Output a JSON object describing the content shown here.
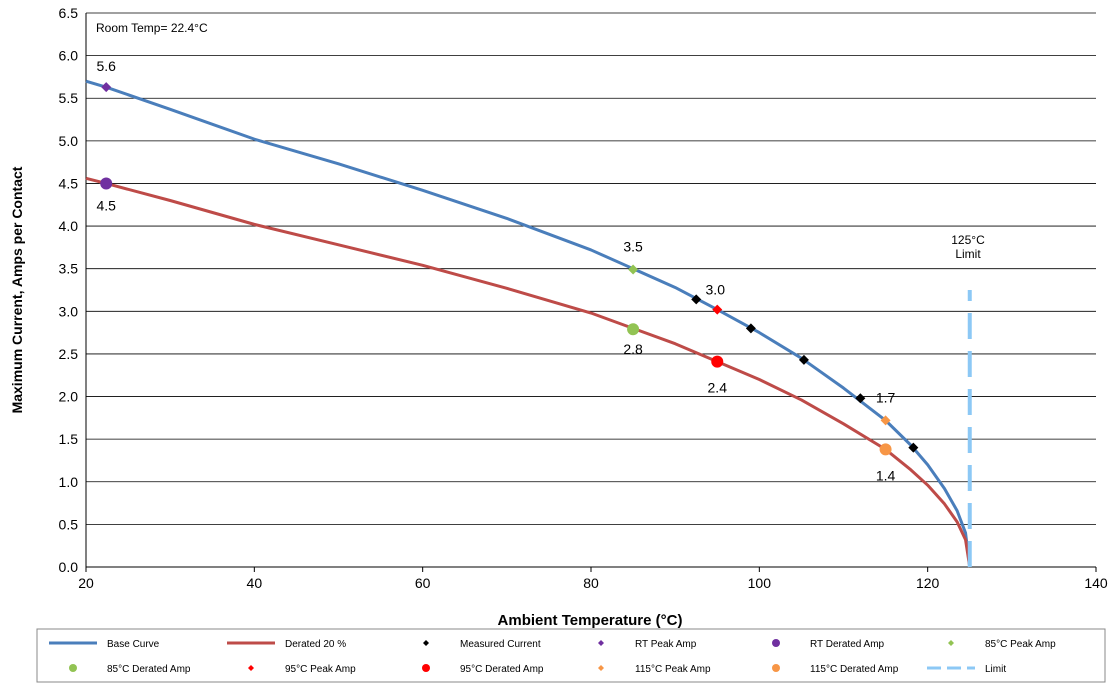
{
  "chart_data": {
    "type": "line",
    "title": "",
    "xlabel": "Ambient Temperature (°C)",
    "ylabel": "Maximum Current, Amps per Contact",
    "xlim": [
      20,
      140
    ],
    "ylim": [
      0,
      6.5
    ],
    "x_ticks": [
      20,
      40,
      60,
      80,
      100,
      120,
      140
    ],
    "y_ticks": [
      "0.0",
      "0.5",
      "1.0",
      "1.5",
      "2.0",
      "2.5",
      "3.0",
      "3.5",
      "4.0",
      "4.5",
      "5.0",
      "5.5",
      "6.0",
      "6.5"
    ],
    "grid": "horizontal",
    "legend_position": "bottom",
    "annotations": [
      {
        "text": "Room Temp= 22.4°C",
        "x": 21,
        "y": 6.35
      },
      {
        "text": "125°C",
        "x": 125,
        "y": 3.85
      },
      {
        "text": "Limit",
        "x": 125,
        "y": 3.72
      }
    ],
    "series": [
      {
        "name": "Base Curve",
        "kind": "line",
        "color": "#4a7ebb",
        "x": [
          20,
          22.4,
          30,
          40,
          50,
          60,
          70,
          80,
          85,
          90,
          95,
          100,
          105,
          110,
          115,
          118,
          120,
          122,
          123.5,
          124.5,
          125
        ],
        "y": [
          5.7,
          5.63,
          5.37,
          5.02,
          4.73,
          4.42,
          4.09,
          3.72,
          3.5,
          3.28,
          3.02,
          2.75,
          2.45,
          2.1,
          1.72,
          1.43,
          1.2,
          0.92,
          0.66,
          0.4,
          0.0
        ]
      },
      {
        "name": "Derated 20 %",
        "kind": "line",
        "color": "#be4b48",
        "x": [
          20,
          22.4,
          30,
          40,
          50,
          60,
          70,
          80,
          85,
          90,
          95,
          100,
          105,
          110,
          115,
          118,
          120,
          122,
          123.5,
          124.5,
          125
        ],
        "y": [
          4.56,
          4.5,
          4.3,
          4.02,
          3.78,
          3.54,
          3.27,
          2.98,
          2.8,
          2.62,
          2.41,
          2.2,
          1.96,
          1.68,
          1.38,
          1.14,
          0.96,
          0.74,
          0.53,
          0.32,
          0.0
        ]
      },
      {
        "name": "Measured Current",
        "kind": "diamond",
        "color": "#000000",
        "x": [
          92.5,
          99,
          105.3,
          112,
          118.3
        ],
        "y": [
          3.14,
          2.8,
          2.43,
          1.98,
          1.4
        ]
      },
      {
        "name": "RT Peak Amp",
        "kind": "diamond",
        "color": "#7030a0",
        "x": [
          22.4
        ],
        "y": [
          5.63
        ],
        "labels": [
          "5.6"
        ]
      },
      {
        "name": "RT Derated Amp",
        "kind": "circle",
        "color": "#7030a0",
        "x": [
          22.4
        ],
        "y": [
          4.5
        ],
        "labels": [
          "4.5"
        ]
      },
      {
        "name": "85°C Peak Amp",
        "kind": "diamond",
        "color": "#92c353",
        "x": [
          85
        ],
        "y": [
          3.49
        ],
        "labels": [
          "3.5"
        ]
      },
      {
        "name": "85°C Derated Amp",
        "kind": "circle",
        "color": "#92c353",
        "x": [
          85
        ],
        "y": [
          2.79
        ],
        "labels": [
          "2.8"
        ]
      },
      {
        "name": "95°C Peak Amp",
        "kind": "diamond",
        "color": "#ff0000",
        "x": [
          95
        ],
        "y": [
          3.02
        ],
        "labels": [
          "3.0"
        ]
      },
      {
        "name": "95°C Derated Amp",
        "kind": "circle",
        "color": "#ff0000",
        "x": [
          95
        ],
        "y": [
          2.41
        ],
        "labels": [
          "2.4"
        ]
      },
      {
        "name": "115°C Peak Amp",
        "kind": "diamond",
        "color": "#f79646",
        "x": [
          115
        ],
        "y": [
          1.72
        ],
        "labels": [
          "1.7"
        ]
      },
      {
        "name": "115°C Derated Amp",
        "kind": "circle",
        "color": "#f79646",
        "x": [
          115
        ],
        "y": [
          1.38
        ],
        "labels": [
          "1.4"
        ]
      },
      {
        "name": "Limit",
        "kind": "dashed",
        "color": "#8cc8f5",
        "x": [
          125,
          125
        ],
        "y": [
          0,
          3.25
        ]
      }
    ]
  }
}
